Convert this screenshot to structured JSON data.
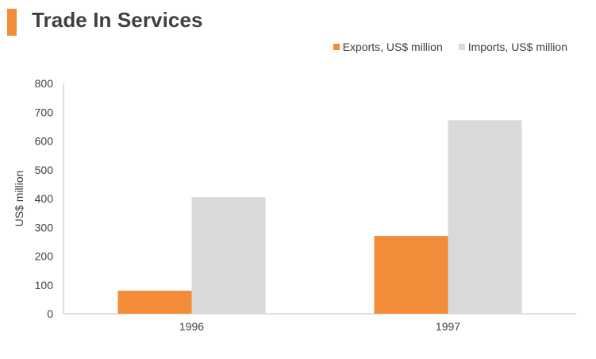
{
  "header": {
    "title": "Trade In Services"
  },
  "colors": {
    "accent": "#f28c38",
    "exports": "#f28c38",
    "imports": "#d9d9d9",
    "axis": "#bfbfbf"
  },
  "chart_data": {
    "type": "bar",
    "title": "Trade In Services",
    "xlabel": "",
    "ylabel": "US$ million",
    "categories": [
      "1996",
      "1997"
    ],
    "series": [
      {
        "name": "Exports, US$ million",
        "color": "#f28c38",
        "values": [
          80,
          270
        ]
      },
      {
        "name": "Imports, US$ million",
        "color": "#d9d9d9",
        "values": [
          405,
          672
        ]
      }
    ],
    "ylim": [
      0,
      800
    ],
    "yticks": [
      "0",
      "100",
      "200",
      "300",
      "400",
      "500",
      "600",
      "700",
      "800"
    ],
    "grid": false,
    "legend": "top-right"
  }
}
